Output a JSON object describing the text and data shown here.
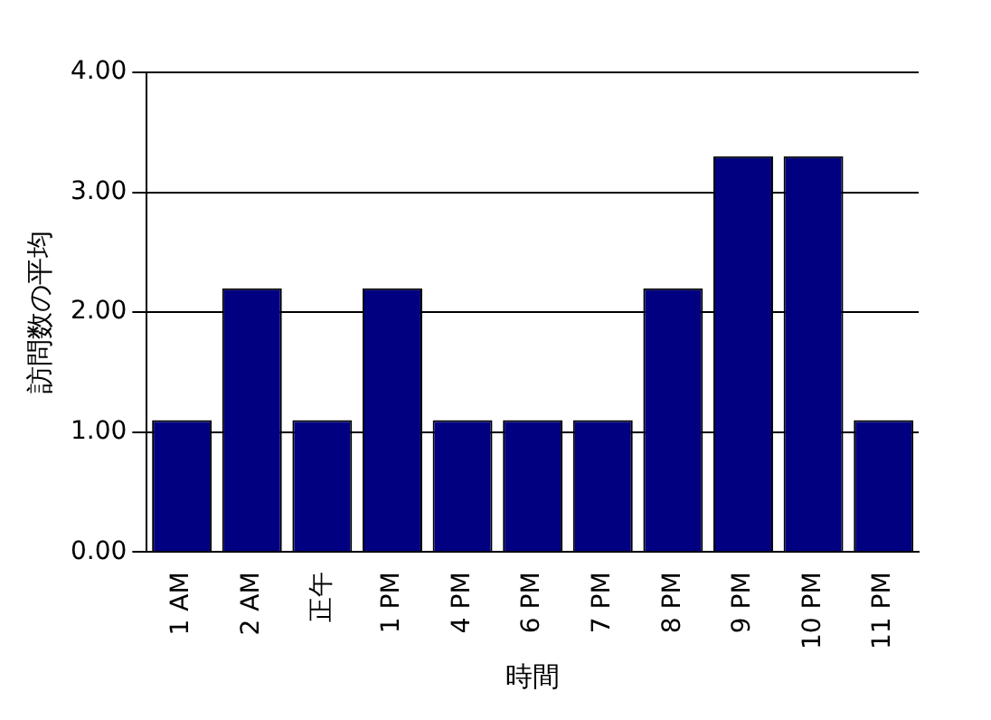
{
  "chart_data": {
    "type": "bar",
    "xlabel": "時間",
    "ylabel": "訪問数の平均",
    "categories": [
      "1 AM",
      "2 AM",
      "正午",
      "1 PM",
      "4 PM",
      "6 PM",
      "7 PM",
      "8 PM",
      "9 PM",
      "10 PM",
      "11 PM"
    ],
    "values": [
      1.1,
      2.2,
      1.1,
      2.2,
      1.1,
      1.1,
      1.1,
      2.2,
      3.3,
      3.3,
      1.1
    ],
    "color": "#000080",
    "ylim": [
      0,
      4
    ],
    "yticks": [
      {
        "value": 0,
        "label": "0.00"
      },
      {
        "value": 1,
        "label": "1.00"
      },
      {
        "value": 2,
        "label": "2.00"
      },
      {
        "value": 3,
        "label": "3.00"
      },
      {
        "value": 4,
        "label": "4.00"
      }
    ],
    "grid": "y"
  }
}
